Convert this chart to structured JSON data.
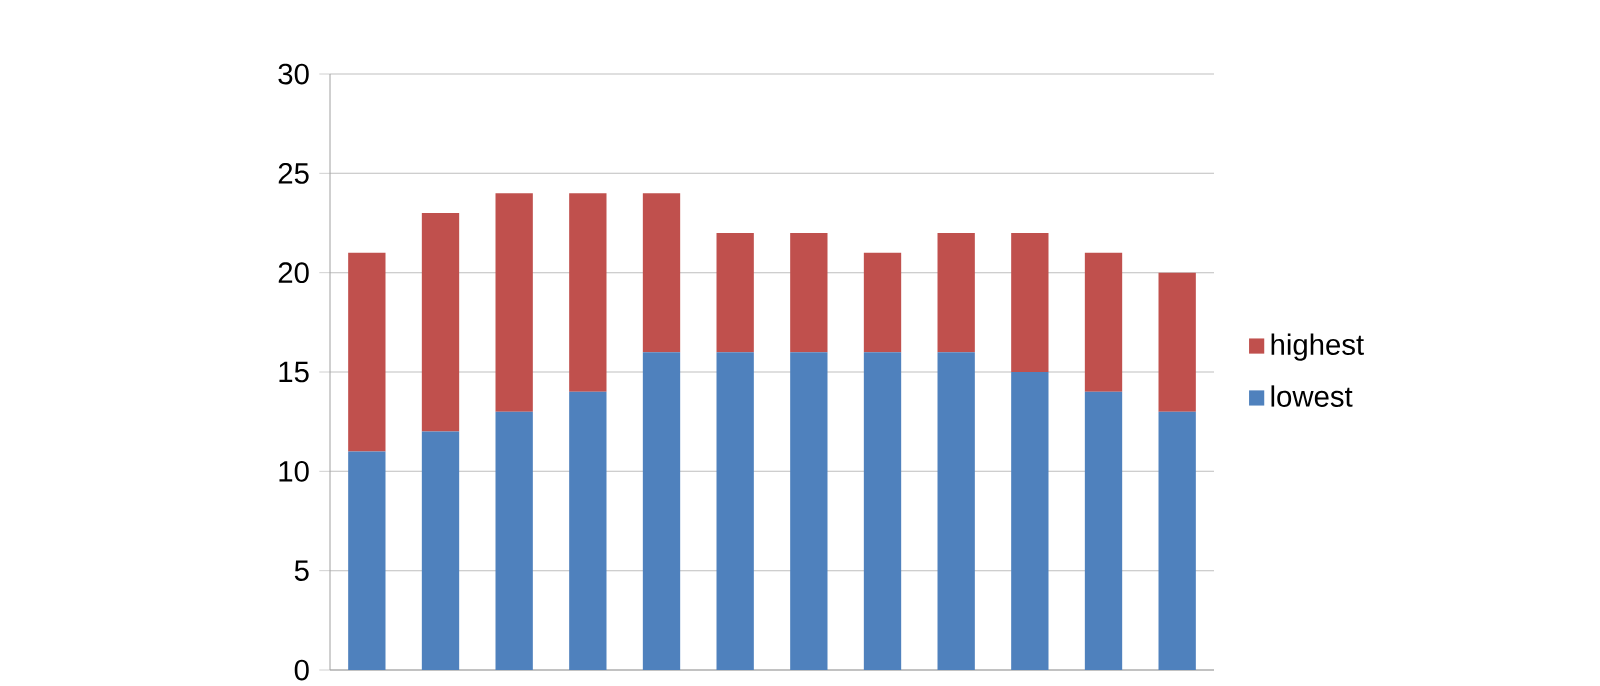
{
  "chart_data": {
    "type": "bar",
    "stacked": true,
    "categories": [
      null,
      null,
      null,
      null,
      null,
      null,
      null,
      null,
      null,
      null,
      null,
      null
    ],
    "series": [
      {
        "name": "lowest",
        "color": "#4f81bd",
        "values": [
          11,
          12,
          13,
          14,
          16,
          16,
          16,
          16,
          16,
          15,
          14,
          13
        ]
      },
      {
        "name": "highest",
        "color": "#c0504d",
        "values": [
          10,
          11,
          11,
          10,
          8,
          6,
          6,
          5,
          6,
          7,
          7,
          7
        ]
      }
    ],
    "ylim": [
      0,
      30
    ],
    "yticks": [
      0,
      5,
      10,
      15,
      20,
      25,
      30
    ],
    "grid": "y",
    "legend": "right"
  }
}
